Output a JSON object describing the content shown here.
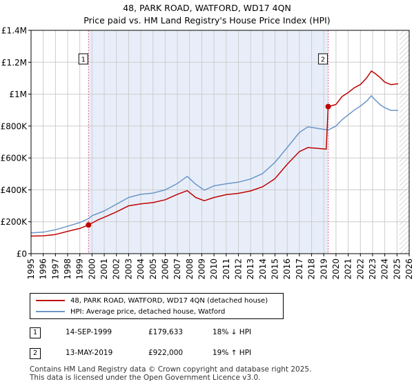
{
  "header": {
    "title": "48, PARK ROAD, WATFORD, WD17 4QN",
    "subtitle": "Price paid vs. HM Land Registry's House Price Index (HPI)"
  },
  "colors": {
    "property_line": "#c00000",
    "hpi_line": "#6a96c8",
    "shade": "#e8eef9",
    "grid": "#cccccc",
    "marker_line": "#e06080"
  },
  "chart_data": {
    "type": "line",
    "title": "48, PARK ROAD, WATFORD, WD17 4QN",
    "xlabel": "",
    "ylabel": "",
    "xlim": [
      1995,
      2026
    ],
    "ylim": [
      0,
      1400000
    ],
    "x_ticks": [
      "1995",
      "1996",
      "1997",
      "1998",
      "1999",
      "2000",
      "2001",
      "2002",
      "2003",
      "2004",
      "2005",
      "2006",
      "2007",
      "2008",
      "2009",
      "2010",
      "2011",
      "2012",
      "2013",
      "2014",
      "2015",
      "2016",
      "2017",
      "2018",
      "2019",
      "2020",
      "2021",
      "2022",
      "2023",
      "2024",
      "2025",
      "2026"
    ],
    "y_ticks": [
      {
        "value": 0,
        "label": "£0"
      },
      {
        "value": 200000,
        "label": "£200K"
      },
      {
        "value": 400000,
        "label": "£400K"
      },
      {
        "value": 600000,
        "label": "£600K"
      },
      {
        "value": 800000,
        "label": "£800K"
      },
      {
        "value": 1000000,
        "label": "£1M"
      },
      {
        "value": 1200000,
        "label": "£1.2M"
      },
      {
        "value": 1400000,
        "label": "£1.4M"
      }
    ],
    "shaded_range": [
      1999.71,
      2019.36
    ],
    "hatched_from": 2025.2,
    "series": [
      {
        "name": "48, PARK ROAD, WATFORD, WD17 4QN (detached house)",
        "color": "#c00000",
        "x": [
          1995,
          1996,
          1997,
          1998,
          1999,
          1999.71,
          2000,
          2000.5,
          2001,
          2002,
          2003,
          2004,
          2005,
          2006,
          2007,
          2007.8,
          2008.5,
          2009.2,
          2010,
          2011,
          2012,
          2013,
          2014,
          2015,
          2016,
          2017,
          2017.7,
          2018.5,
          2019.2,
          2019.36,
          2020,
          2020.5,
          2021,
          2021.5,
          2022,
          2022.5,
          2022.9,
          2023.2,
          2023.6,
          2024,
          2024.5,
          2025.1
        ],
        "values": [
          110000,
          112000,
          120000,
          140000,
          158000,
          179633,
          192000,
          212000,
          228000,
          262000,
          300000,
          312000,
          320000,
          338000,
          372000,
          395000,
          352000,
          332000,
          352000,
          370000,
          378000,
          393000,
          420000,
          470000,
          560000,
          640000,
          665000,
          660000,
          655000,
          922000,
          935000,
          985000,
          1010000,
          1040000,
          1060000,
          1100000,
          1145000,
          1130000,
          1105000,
          1075000,
          1060000,
          1065000
        ]
      },
      {
        "name": "HPI: Average price, detached house, Watford",
        "color": "#6a96c8",
        "x": [
          1995,
          1996,
          1997,
          1998,
          1999,
          1999.71,
          2000,
          2001,
          2002,
          2003,
          2004,
          2005,
          2006,
          2007,
          2007.8,
          2008.5,
          2009.2,
          2010,
          2011,
          2012,
          2013,
          2014,
          2015,
          2016,
          2017,
          2017.7,
          2018.5,
          2019.36,
          2020,
          2020.5,
          2021,
          2021.5,
          2022,
          2022.5,
          2022.9,
          2023.2,
          2023.6,
          2024,
          2024.5,
          2025.1
        ],
        "values": [
          130000,
          135000,
          150000,
          172000,
          195000,
          219000,
          238000,
          268000,
          310000,
          352000,
          372000,
          380000,
          400000,
          440000,
          485000,
          435000,
          398000,
          425000,
          438000,
          448000,
          468000,
          503000,
          572000,
          665000,
          760000,
          795000,
          785000,
          775000,
          800000,
          840000,
          870000,
          900000,
          925000,
          955000,
          990000,
          965000,
          935000,
          915000,
          898000,
          898000
        ]
      }
    ],
    "sales": [
      {
        "label": "1",
        "x": 1999.71,
        "value": 179633
      },
      {
        "label": "2",
        "x": 2019.36,
        "value": 922000
      }
    ]
  },
  "legend": {
    "items": [
      {
        "label": "48, PARK ROAD, WATFORD, WD17 4QN (detached house)"
      },
      {
        "label": "HPI: Average price, detached house, Watford"
      }
    ]
  },
  "transactions": [
    {
      "num": "1",
      "date": "14-SEP-1999",
      "price": "£179,633",
      "hpi": "18% ↓ HPI"
    },
    {
      "num": "2",
      "date": "13-MAY-2019",
      "price": "£922,000",
      "hpi": "19% ↑ HPI"
    }
  ],
  "footer": {
    "line1": "Contains HM Land Registry data © Crown copyright and database right 2025.",
    "line2": "This data is licensed under the Open Government Licence v3.0."
  }
}
